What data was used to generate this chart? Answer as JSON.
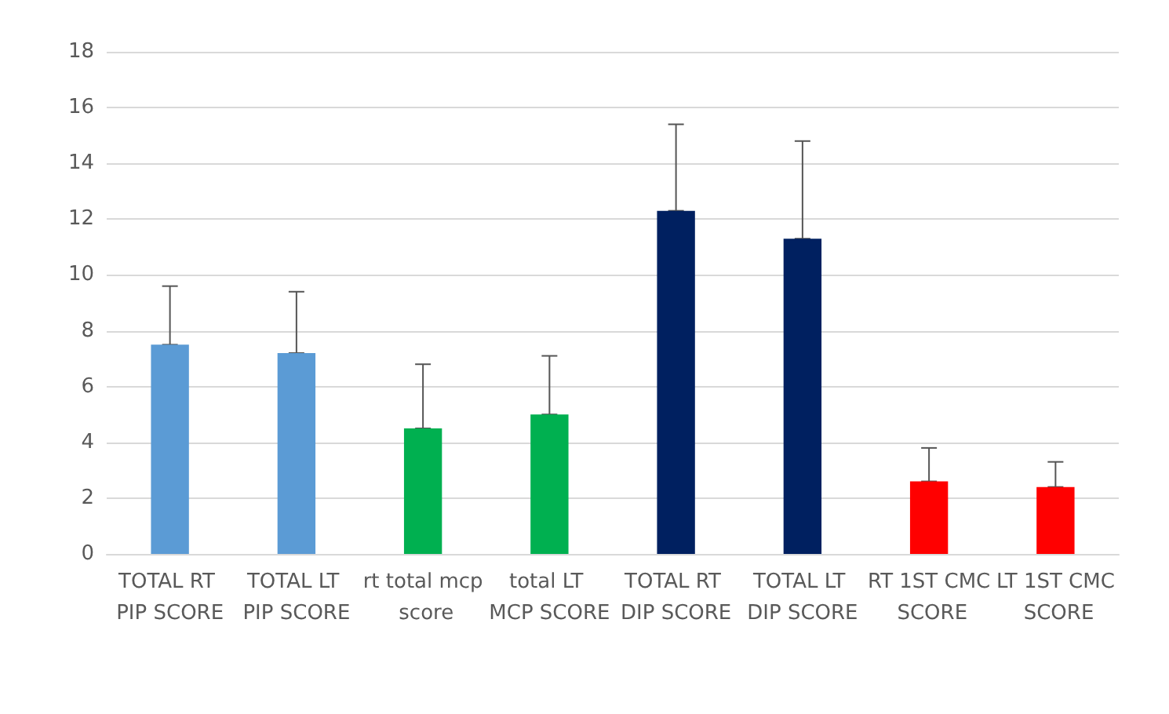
{
  "chart_data": {
    "type": "bar",
    "categories": [
      "TOTAL RT PIP SCORE",
      "TOTAL LT PIP SCORE",
      "rt total mcp score",
      "total LT MCP SCORE",
      "TOTAL RT DIP SCORE",
      "TOTAL LT DIP SCORE",
      "RT 1ST CMC SCORE",
      "LT 1ST CMC SCORE"
    ],
    "values": [
      7.5,
      7.2,
      4.5,
      5.0,
      12.3,
      11.3,
      2.6,
      2.4
    ],
    "errors": [
      [
        7.5,
        9.6
      ],
      [
        7.2,
        9.4
      ],
      [
        4.5,
        6.8
      ],
      [
        5.0,
        7.1
      ],
      [
        12.3,
        15.4
      ],
      [
        11.3,
        14.8
      ],
      [
        2.6,
        3.8
      ],
      [
        2.4,
        3.3
      ]
    ],
    "colors": [
      "#5b9bd5",
      "#5b9bd5",
      "#00b050",
      "#00b050",
      "#002060",
      "#002060",
      "#ff0000",
      "#ff0000"
    ],
    "ylim": [
      0,
      18
    ],
    "yticks": [
      0,
      2,
      4,
      6,
      8,
      10,
      12,
      14,
      16,
      18
    ],
    "grid": "y"
  }
}
